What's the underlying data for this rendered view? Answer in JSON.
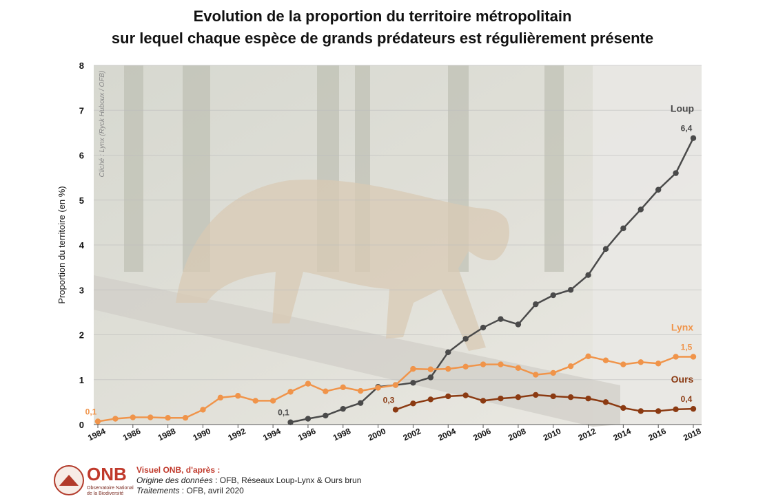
{
  "chart_data": {
    "type": "line",
    "title_lines": [
      "Evolution de la proportion du territoire métropolitain",
      "sur lequel chaque espèce de grands prédateurs est régulièrement présente"
    ],
    "ylabel": "Proportion du territoire (en %)",
    "ylim": [
      0,
      8
    ],
    "yticks": [
      "0",
      "1",
      "2",
      "3",
      "4",
      "5",
      "6",
      "7",
      "8"
    ],
    "xlim": [
      1984,
      2018
    ],
    "xticks": [
      "1984",
      "1986",
      "1988",
      "1990",
      "1992",
      "1994",
      "1996",
      "1998",
      "2000",
      "2002",
      "2004",
      "2006",
      "2008",
      "2010",
      "2012",
      "2014",
      "2016",
      "2018"
    ],
    "photo_credit": "Cliché : Lynx (Ryck Huboux / OFB)",
    "grid": true,
    "series": [
      {
        "name": "Loup",
        "color": "#4a4a4a",
        "x": [
          1995,
          1996,
          1997,
          1998,
          1999,
          2000,
          2001,
          2002,
          2003,
          2004,
          2005,
          2006,
          2007,
          2008,
          2009,
          2010,
          2011,
          2012,
          2013,
          2014,
          2015,
          2016,
          2017,
          2018
        ],
        "values": [
          0.05,
          0.13,
          0.2,
          0.35,
          0.48,
          0.84,
          0.88,
          0.93,
          1.05,
          1.61,
          1.91,
          2.16,
          2.35,
          2.23,
          2.68,
          2.88,
          3.0,
          3.33,
          3.91,
          4.37,
          4.79,
          5.23,
          5.6,
          6.38
        ],
        "start_label": "0,1",
        "end_label": "6,4"
      },
      {
        "name": "Lynx",
        "color": "#f0944a",
        "x": [
          1984,
          1985,
          1986,
          1987,
          1988,
          1989,
          1990,
          1991,
          1992,
          1993,
          1994,
          1995,
          1996,
          1997,
          1998,
          1999,
          2000,
          2001,
          2002,
          2003,
          2004,
          2005,
          2006,
          2007,
          2008,
          2009,
          2010,
          2011,
          2012,
          2013,
          2014,
          2015,
          2016,
          2017,
          2018
        ],
        "values": [
          0.07,
          0.13,
          0.16,
          0.16,
          0.15,
          0.15,
          0.33,
          0.6,
          0.64,
          0.53,
          0.53,
          0.73,
          0.91,
          0.74,
          0.83,
          0.75,
          0.82,
          0.88,
          1.24,
          1.23,
          1.24,
          1.29,
          1.34,
          1.34,
          1.26,
          1.11,
          1.15,
          1.3,
          1.52,
          1.43,
          1.34,
          1.39,
          1.36,
          1.51,
          1.51
        ],
        "start_label": "0,1",
        "end_label": "1,5"
      },
      {
        "name": "Ours",
        "color": "#8b3a12",
        "x": [
          2001,
          2002,
          2003,
          2004,
          2005,
          2006,
          2007,
          2008,
          2009,
          2010,
          2011,
          2012,
          2013,
          2014,
          2015,
          2016,
          2017,
          2018
        ],
        "values": [
          0.33,
          0.47,
          0.56,
          0.63,
          0.65,
          0.53,
          0.58,
          0.61,
          0.66,
          0.63,
          0.61,
          0.58,
          0.5,
          0.37,
          0.3,
          0.3,
          0.34,
          0.35
        ],
        "start_label": "0,3",
        "end_label": "0,4"
      }
    ]
  },
  "footer": {
    "logo_text": "ONB",
    "logo_subtitle": "Observatoire National de la Biodiversité",
    "credit_head": "Visuel ONB, d'après :",
    "source_label": "Origine des données",
    "source_value": " : OFB, Réseaux Loup-Lynx & Ours brun",
    "treatment_label": "Traitements",
    "treatment_value": " : OFB, avril 2020"
  }
}
